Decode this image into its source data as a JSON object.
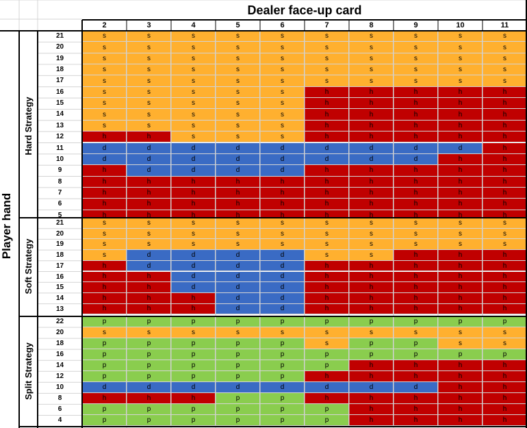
{
  "header": {
    "title": "Dealer face-up card"
  },
  "row_axis_label": "Player hand",
  "dealer_cards": [
    "2",
    "3",
    "4",
    "5",
    "6",
    "7",
    "8",
    "9",
    "10",
    "11"
  ],
  "action_colors": {
    "s": "#FFB02F",
    "h": "#C00000",
    "d": "#3A6BC4",
    "p": "#8ACD4E"
  },
  "sections": [
    {
      "label": "Hard Strategy",
      "rows": [
        {
          "hand": "21",
          "actions": [
            "s",
            "s",
            "s",
            "s",
            "s",
            "s",
            "s",
            "s",
            "s",
            "s"
          ]
        },
        {
          "hand": "20",
          "actions": [
            "s",
            "s",
            "s",
            "s",
            "s",
            "s",
            "s",
            "s",
            "s",
            "s"
          ]
        },
        {
          "hand": "19",
          "actions": [
            "s",
            "s",
            "s",
            "s",
            "s",
            "s",
            "s",
            "s",
            "s",
            "s"
          ]
        },
        {
          "hand": "18",
          "actions": [
            "s",
            "s",
            "s",
            "s",
            "s",
            "s",
            "s",
            "s",
            "s",
            "s"
          ]
        },
        {
          "hand": "17",
          "actions": [
            "s",
            "s",
            "s",
            "s",
            "s",
            "s",
            "s",
            "s",
            "s",
            "s"
          ]
        },
        {
          "hand": "16",
          "actions": [
            "s",
            "s",
            "s",
            "s",
            "s",
            "h",
            "h",
            "h",
            "h",
            "h"
          ]
        },
        {
          "hand": "15",
          "actions": [
            "s",
            "s",
            "s",
            "s",
            "s",
            "h",
            "h",
            "h",
            "h",
            "h"
          ]
        },
        {
          "hand": "14",
          "actions": [
            "s",
            "s",
            "s",
            "s",
            "s",
            "h",
            "h",
            "h",
            "h",
            "h"
          ]
        },
        {
          "hand": "13",
          "actions": [
            "s",
            "s",
            "s",
            "s",
            "s",
            "h",
            "h",
            "h",
            "h",
            "h"
          ]
        },
        {
          "hand": "12",
          "actions": [
            "h",
            "h",
            "s",
            "s",
            "s",
            "h",
            "h",
            "h",
            "h",
            "h"
          ]
        },
        {
          "hand": "11",
          "actions": [
            "d",
            "d",
            "d",
            "d",
            "d",
            "d",
            "d",
            "d",
            "d",
            "h"
          ]
        },
        {
          "hand": "10",
          "actions": [
            "d",
            "d",
            "d",
            "d",
            "d",
            "d",
            "d",
            "d",
            "h",
            "h"
          ]
        },
        {
          "hand": "9",
          "actions": [
            "h",
            "d",
            "d",
            "d",
            "d",
            "h",
            "h",
            "h",
            "h",
            "h"
          ]
        },
        {
          "hand": "8",
          "actions": [
            "h",
            "h",
            "h",
            "h",
            "h",
            "h",
            "h",
            "h",
            "h",
            "h"
          ]
        },
        {
          "hand": "7",
          "actions": [
            "h",
            "h",
            "h",
            "h",
            "h",
            "h",
            "h",
            "h",
            "h",
            "h"
          ]
        },
        {
          "hand": "6",
          "actions": [
            "h",
            "h",
            "h",
            "h",
            "h",
            "h",
            "h",
            "h",
            "h",
            "h"
          ]
        },
        {
          "hand": "5",
          "actions": [
            "h",
            "h",
            "h",
            "h",
            "h",
            "h",
            "h",
            "h",
            "h",
            "h"
          ]
        }
      ]
    },
    {
      "label": "Soft Strategy",
      "rows": [
        {
          "hand": "21",
          "actions": [
            "s",
            "s",
            "s",
            "s",
            "s",
            "s",
            "s",
            "s",
            "s",
            "s"
          ]
        },
        {
          "hand": "20",
          "actions": [
            "s",
            "s",
            "s",
            "s",
            "s",
            "s",
            "s",
            "s",
            "s",
            "s"
          ]
        },
        {
          "hand": "19",
          "actions": [
            "s",
            "s",
            "s",
            "s",
            "s",
            "s",
            "s",
            "s",
            "s",
            "s"
          ]
        },
        {
          "hand": "18",
          "actions": [
            "s",
            "d",
            "d",
            "d",
            "d",
            "s",
            "s",
            "h",
            "h",
            "h"
          ]
        },
        {
          "hand": "17",
          "actions": [
            "h",
            "d",
            "d",
            "d",
            "d",
            "h",
            "h",
            "h",
            "h",
            "h"
          ]
        },
        {
          "hand": "16",
          "actions": [
            "h",
            "h",
            "d",
            "d",
            "d",
            "h",
            "h",
            "h",
            "h",
            "h"
          ]
        },
        {
          "hand": "15",
          "actions": [
            "h",
            "h",
            "d",
            "d",
            "d",
            "h",
            "h",
            "h",
            "h",
            "h"
          ]
        },
        {
          "hand": "14",
          "actions": [
            "h",
            "h",
            "h",
            "d",
            "d",
            "h",
            "h",
            "h",
            "h",
            "h"
          ]
        },
        {
          "hand": "13",
          "actions": [
            "h",
            "h",
            "h",
            "d",
            "d",
            "h",
            "h",
            "h",
            "h",
            "h"
          ]
        }
      ]
    },
    {
      "label": "Split Strategy",
      "rows": [
        {
          "hand": "22",
          "actions": [
            "p",
            "p",
            "p",
            "p",
            "p",
            "p",
            "p",
            "p",
            "p",
            "p"
          ]
        },
        {
          "hand": "20",
          "actions": [
            "s",
            "s",
            "s",
            "s",
            "s",
            "s",
            "s",
            "s",
            "s",
            "s"
          ]
        },
        {
          "hand": "18",
          "actions": [
            "p",
            "p",
            "p",
            "p",
            "p",
            "s",
            "p",
            "p",
            "s",
            "s"
          ]
        },
        {
          "hand": "16",
          "actions": [
            "p",
            "p",
            "p",
            "p",
            "p",
            "p",
            "p",
            "p",
            "p",
            "p"
          ]
        },
        {
          "hand": "14",
          "actions": [
            "p",
            "p",
            "p",
            "p",
            "p",
            "p",
            "h",
            "h",
            "h",
            "h"
          ]
        },
        {
          "hand": "12",
          "actions": [
            "p",
            "p",
            "p",
            "p",
            "p",
            "h",
            "h",
            "h",
            "h",
            "h"
          ]
        },
        {
          "hand": "10",
          "actions": [
            "d",
            "d",
            "d",
            "d",
            "d",
            "d",
            "d",
            "d",
            "h",
            "h"
          ]
        },
        {
          "hand": "8",
          "actions": [
            "h",
            "h",
            "h",
            "p",
            "p",
            "h",
            "h",
            "h",
            "h",
            "h"
          ]
        },
        {
          "hand": "6",
          "actions": [
            "p",
            "p",
            "p",
            "p",
            "p",
            "p",
            "h",
            "h",
            "h",
            "h"
          ]
        },
        {
          "hand": "4",
          "actions": [
            "p",
            "p",
            "p",
            "p",
            "p",
            "p",
            "h",
            "h",
            "h",
            "h"
          ]
        }
      ]
    }
  ]
}
